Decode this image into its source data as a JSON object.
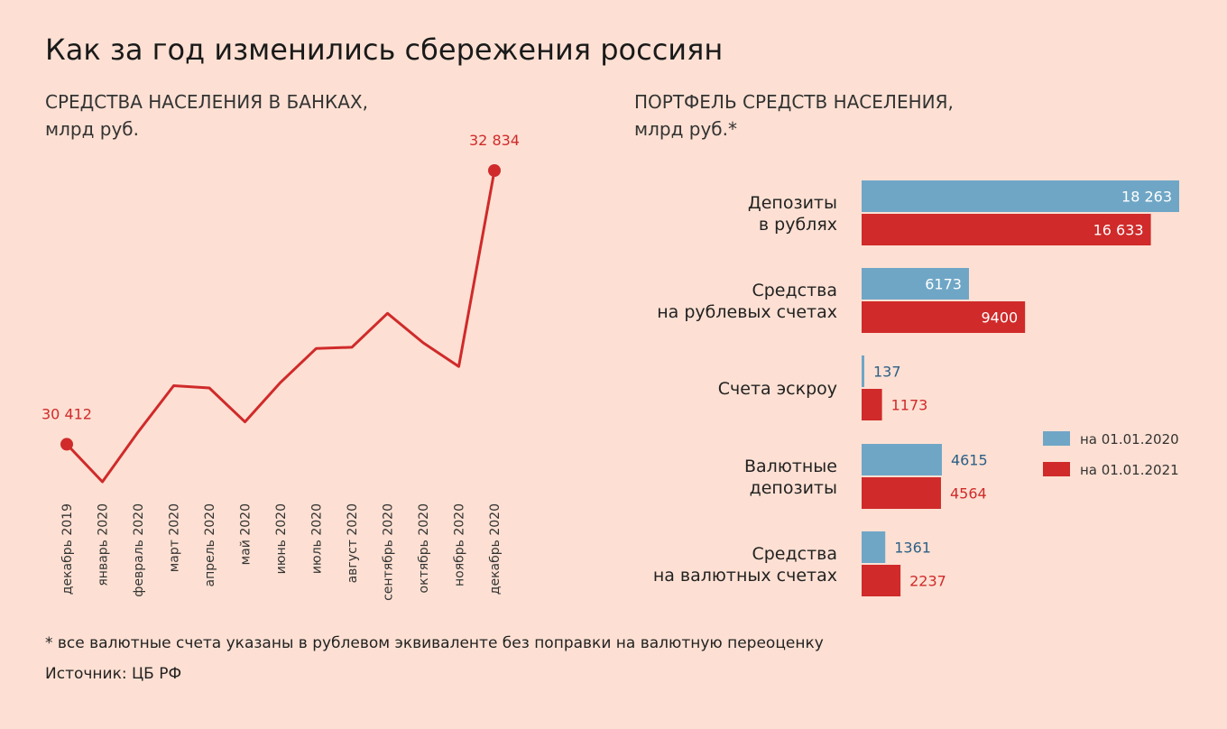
{
  "title": "Как за год изменились сбережения россиян",
  "footnote": "* все валютные счета указаны в рублевом эквиваленте без поправки на валютную переоценку",
  "source": "Источник: ЦБ РФ",
  "colors": {
    "blue": "#6fa6c6",
    "red": "#d02a2a",
    "background": "#fde0d3"
  },
  "chart_data": [
    {
      "type": "line",
      "title_lines": [
        "СРЕДСТВА НАСЕЛЕНИЯ В БАНКАХ,",
        "млрд руб."
      ],
      "x": [
        "декабрь 2019",
        "январь 2020",
        "февраль 2020",
        "март 2020",
        "апрель 2020",
        "май 2020",
        "июнь 2020",
        "июль 2020",
        "август 2020",
        "сентябрь 2020",
        "октябрь 2020",
        "ноябрь 2020",
        "декабрь 2020"
      ],
      "values": [
        30412,
        30080,
        30520,
        30930,
        30910,
        30610,
        30960,
        31260,
        31270,
        31570,
        31310,
        31100,
        32834
      ],
      "labeled_points": [
        {
          "index": 0,
          "label": "30 412"
        },
        {
          "index": 12,
          "label": "32 834"
        }
      ],
      "color": "#d02a2a",
      "grid": false
    },
    {
      "type": "bar",
      "orientation": "horizontal",
      "title_lines": [
        "ПОРТФЕЛЬ СРЕДСТВ НАСЕЛЕНИЯ,",
        "млрд руб.*"
      ],
      "categories": [
        [
          "Депозиты",
          "в рублях"
        ],
        [
          "Средства",
          "на рублевых счетах"
        ],
        [
          "Счета эскроу"
        ],
        [
          "Валютные",
          "депозиты"
        ],
        [
          "Средства",
          "на валютных счетах"
        ]
      ],
      "series": [
        {
          "name": "на 01.01.2020",
          "color": "#6fa6c6",
          "values": [
            18263,
            6173,
            137,
            4615,
            1361
          ],
          "labels": [
            "18 263",
            "6173",
            "137",
            "4615",
            "1361"
          ]
        },
        {
          "name": "на 01.01.2021",
          "color": "#d02a2a",
          "values": [
            16633,
            9400,
            1173,
            4564,
            2237
          ],
          "labels": [
            "16 633",
            "9400",
            "1173",
            "4564",
            "2237"
          ]
        }
      ],
      "legend": "right"
    }
  ]
}
